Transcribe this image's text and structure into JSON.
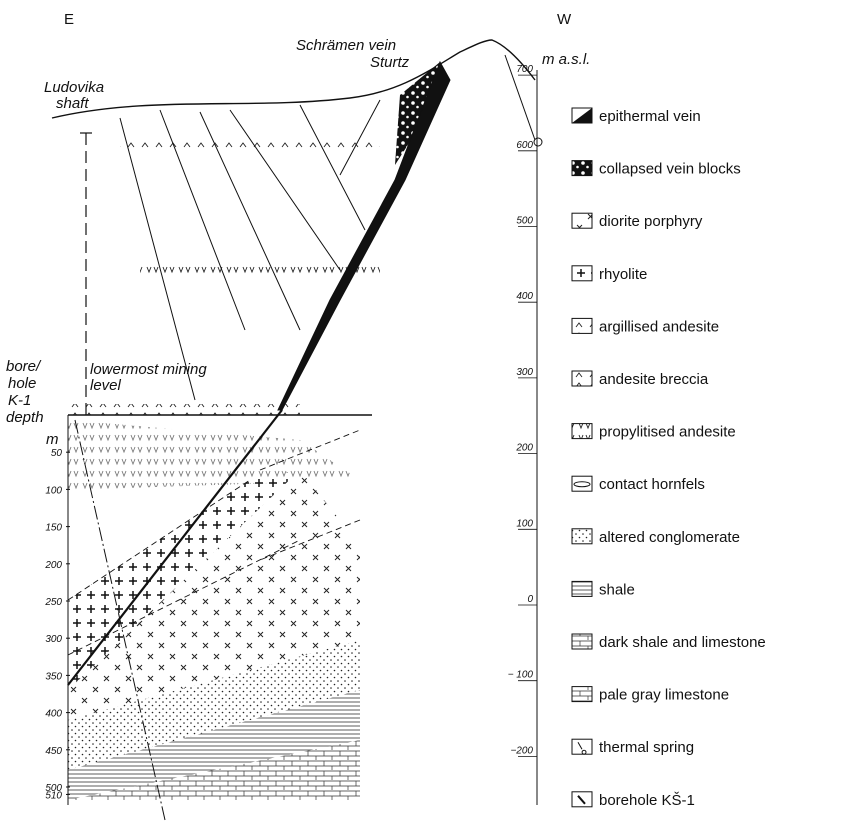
{
  "header": {
    "east": "E",
    "west": "W"
  },
  "labels": {
    "vein": "Schrämen vein",
    "sturtz": "Sturtz",
    "elevation_unit": "m a.s.l.",
    "shaft": [
      "Ludovika",
      "shaft"
    ],
    "borehole": [
      "bore/",
      "hole",
      "K-1",
      "depth",
      "m"
    ],
    "mining_level": [
      "lowermost mining",
      "level"
    ]
  },
  "depth_scale": {
    "ticks": [
      50,
      100,
      150,
      200,
      250,
      300,
      350,
      400,
      450,
      500,
      510
    ]
  },
  "elevation_scale": {
    "ticks": [
      700,
      600,
      500,
      400,
      300,
      200,
      100,
      0,
      {
        "value": -100,
        "label": "− 100"
      },
      {
        "value": -200,
        "label": "−200"
      }
    ]
  },
  "legend": [
    "epithermal vein",
    "collapsed vein blocks",
    "diorite porphyry",
    "rhyolite",
    "argillised andesite",
    "andesite breccia",
    "propylitised andesite",
    "contact hornfels",
    "altered conglomerate",
    "shale",
    "dark shale and limestone",
    "pale gray limestone",
    "thermal spring",
    "borehole KŠ-1"
  ]
}
